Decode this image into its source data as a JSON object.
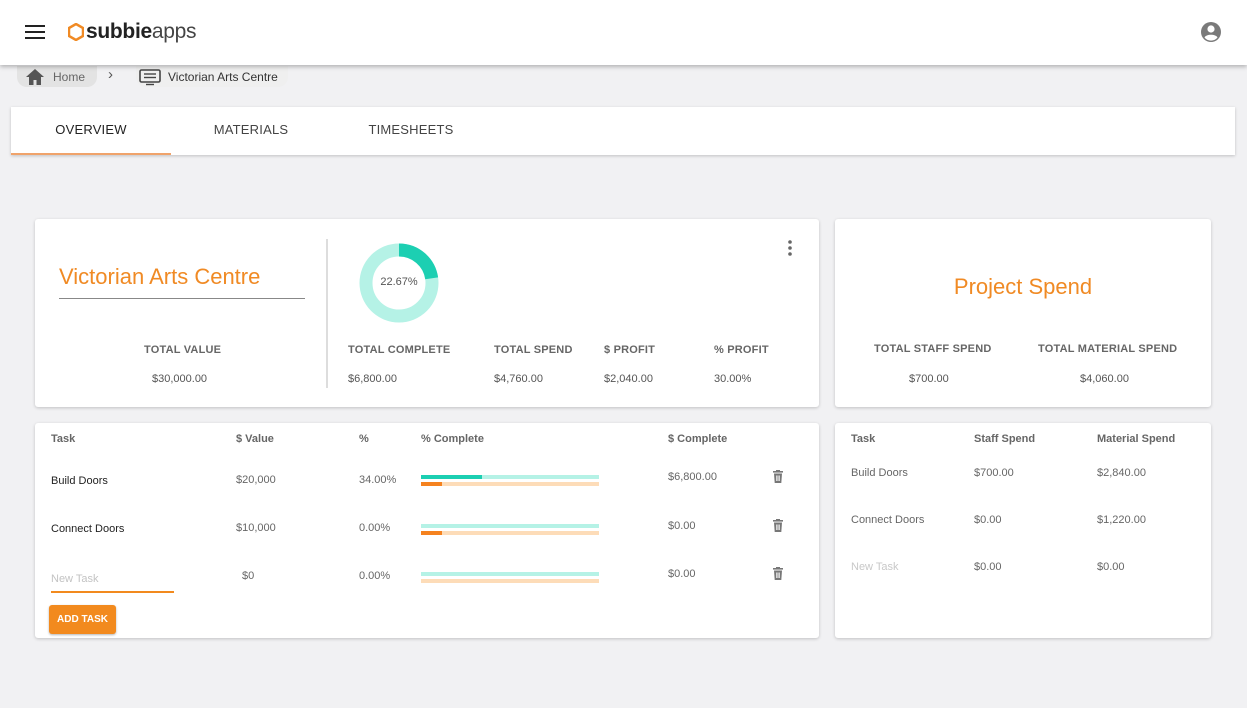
{
  "app": {
    "logo_bold": "subbie",
    "logo_light": "apps",
    "brand_color": "#f08a24",
    "accent_teal": "#1ccfb2"
  },
  "breadcrumb": {
    "home": "Home",
    "separator": "›",
    "current": "Victorian Arts Centre"
  },
  "tabs": [
    {
      "label": "OVERVIEW",
      "active": true
    },
    {
      "label": "MATERIALS",
      "active": false
    },
    {
      "label": "TIMESHEETS",
      "active": false
    }
  ],
  "summary": {
    "project_name": "Victorian Arts Centre",
    "donut": {
      "percent_label": "22.67%",
      "fraction": 0.2267
    },
    "total_value": {
      "label": "TOTAL VALUE",
      "value": "$30,000.00"
    },
    "total_complete": {
      "label": "TOTAL COMPLETE",
      "value": "$6,800.00"
    },
    "total_spend": {
      "label": "TOTAL SPEND",
      "value": "$4,760.00"
    },
    "profit_dollar": {
      "label": "$ PROFIT",
      "value": "$2,040.00"
    },
    "profit_percent": {
      "label": "% PROFIT",
      "value": "30.00%"
    }
  },
  "spend_card": {
    "title": "Project Spend",
    "staff": {
      "label": "TOTAL STAFF SPEND",
      "value": "$700.00"
    },
    "material": {
      "label": "TOTAL MATERIAL SPEND",
      "value": "$4,060.00"
    }
  },
  "tasks_table": {
    "headers": [
      "Task",
      "$ Value",
      "%",
      "% Complete",
      "$ Complete"
    ],
    "rows": [
      {
        "task": "Build Doors",
        "value": "$20,000",
        "percent": "34.00%",
        "complete": "$6,800.00",
        "progress": 0.34,
        "spend": 0.12
      },
      {
        "task": "Connect Doors",
        "value": "$10,000",
        "percent": "0.00%",
        "complete": "$0.00",
        "progress": 0,
        "spend": 0.12
      }
    ],
    "new_row": {
      "placeholder": "New Task",
      "value": "$0",
      "percent": "0.00%",
      "complete": "$0.00"
    },
    "add_button": "ADD TASK"
  },
  "spend_table": {
    "headers": [
      "Task",
      "Staff Spend",
      "Material Spend"
    ],
    "rows": [
      {
        "task": "Build Doors",
        "staff": "$700.00",
        "material": "$2,840.00"
      },
      {
        "task": "Connect Doors",
        "staff": "$0.00",
        "material": "$1,220.00"
      },
      {
        "task": "New Task",
        "staff": "$0.00",
        "material": "$0.00"
      }
    ]
  }
}
